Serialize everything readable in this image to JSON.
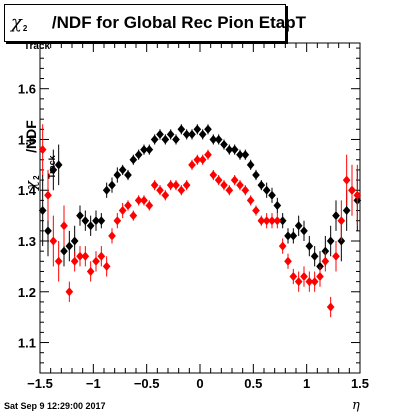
{
  "title": {
    "chi": "χ",
    "sup": "2",
    "sub": "Track",
    "rest": "/NDF for Global Rec Pion EtapT"
  },
  "ylabel": {
    "chi": "χ",
    "sup": "2",
    "sub": "Track",
    "rest": "/NDF"
  },
  "xlabel": "η",
  "datestamp": "Sat Sep  9 12:29:00 2017",
  "colors": {
    "series1": "#000000",
    "series2": "#ff0000",
    "axis": "#000000"
  },
  "chart_data": {
    "type": "scatter",
    "title": "χ2 Track /NDF for Global Rec Pion EtapT",
    "xlabel": "η",
    "ylabel": "χ2 Track /NDF",
    "xlim": [
      -1.5,
      1.5
    ],
    "ylim": [
      1.04,
      1.69
    ],
    "xticks": [
      -1.5,
      -1,
      -0.5,
      0,
      0.5,
      1,
      1.5
    ],
    "xtick_labels": [
      "−1.5",
      "−1",
      "−0.5",
      "0",
      "0.5",
      "1",
      "1.5"
    ],
    "yticks": [
      1.1,
      1.2,
      1.3,
      1.4,
      1.5,
      1.6
    ],
    "ytick_labels": [
      "1.1",
      "1.2",
      "1.3",
      "1.4",
      "1.5",
      "1.6"
    ],
    "grid": false,
    "legend": "none",
    "series": [
      {
        "color": "#000000",
        "points": [
          [
            -1.475,
            1.36,
            0.07
          ],
          [
            -1.425,
            1.32,
            0.05
          ],
          [
            -1.375,
            1.44,
            0.04
          ],
          [
            -1.325,
            1.45,
            0.04
          ],
          [
            -1.275,
            1.28,
            0.03
          ],
          [
            -1.225,
            1.29,
            0.03
          ],
          [
            -1.175,
            1.3,
            0.03
          ],
          [
            -1.125,
            1.35,
            0.02
          ],
          [
            -1.075,
            1.34,
            0.02
          ],
          [
            -1.025,
            1.33,
            0.02
          ],
          [
            -0.975,
            1.34,
            0.02
          ],
          [
            -0.925,
            1.34,
            0.015
          ],
          [
            -0.875,
            1.4,
            0.015
          ],
          [
            -0.825,
            1.41,
            0.015
          ],
          [
            -0.775,
            1.43,
            0.015
          ],
          [
            -0.725,
            1.44,
            0.01
          ],
          [
            -0.675,
            1.43,
            0.01
          ],
          [
            -0.625,
            1.46,
            0.01
          ],
          [
            -0.575,
            1.47,
            0.01
          ],
          [
            -0.525,
            1.48,
            0.01
          ],
          [
            -0.475,
            1.48,
            0.01
          ],
          [
            -0.425,
            1.5,
            0.01
          ],
          [
            -0.375,
            1.51,
            0.01
          ],
          [
            -0.325,
            1.5,
            0.01
          ],
          [
            -0.275,
            1.51,
            0.01
          ],
          [
            -0.225,
            1.5,
            0.01
          ],
          [
            -0.175,
            1.52,
            0.01
          ],
          [
            -0.125,
            1.51,
            0.01
          ],
          [
            -0.075,
            1.51,
            0.01
          ],
          [
            -0.025,
            1.52,
            0.01
          ],
          [
            0.025,
            1.51,
            0.01
          ],
          [
            0.075,
            1.52,
            0.01
          ],
          [
            0.125,
            1.5,
            0.01
          ],
          [
            0.175,
            1.5,
            0.01
          ],
          [
            0.225,
            1.49,
            0.01
          ],
          [
            0.275,
            1.48,
            0.01
          ],
          [
            0.325,
            1.48,
            0.01
          ],
          [
            0.375,
            1.47,
            0.01
          ],
          [
            0.425,
            1.47,
            0.01
          ],
          [
            0.475,
            1.45,
            0.01
          ],
          [
            0.525,
            1.43,
            0.01
          ],
          [
            0.575,
            1.41,
            0.01
          ],
          [
            0.625,
            1.4,
            0.015
          ],
          [
            0.675,
            1.39,
            0.015
          ],
          [
            0.725,
            1.37,
            0.015
          ],
          [
            0.775,
            1.34,
            0.015
          ],
          [
            0.825,
            1.31,
            0.015
          ],
          [
            0.875,
            1.31,
            0.015
          ],
          [
            0.925,
            1.33,
            0.02
          ],
          [
            0.975,
            1.32,
            0.02
          ],
          [
            1.025,
            1.29,
            0.02
          ],
          [
            1.075,
            1.27,
            0.02
          ],
          [
            1.125,
            1.25,
            0.03
          ],
          [
            1.175,
            1.28,
            0.03
          ],
          [
            1.225,
            1.3,
            0.03
          ],
          [
            1.275,
            1.35,
            0.03
          ],
          [
            1.325,
            1.3,
            0.04
          ],
          [
            1.375,
            1.36,
            0.04
          ],
          [
            1.425,
            1.4,
            0.05
          ],
          [
            1.475,
            1.38,
            0.06
          ]
        ]
      },
      {
        "color": "#ff0000",
        "points": [
          [
            -1.475,
            1.48,
            0.05
          ],
          [
            -1.425,
            1.39,
            0.05
          ],
          [
            -1.375,
            1.3,
            0.05
          ],
          [
            -1.325,
            1.26,
            0.04
          ],
          [
            -1.275,
            1.33,
            0.04
          ],
          [
            -1.225,
            1.2,
            0.02
          ],
          [
            -1.175,
            1.26,
            0.02
          ],
          [
            -1.125,
            1.27,
            0.02
          ],
          [
            -1.075,
            1.27,
            0.02
          ],
          [
            -1.025,
            1.24,
            0.02
          ],
          [
            -0.975,
            1.26,
            0.02
          ],
          [
            -0.925,
            1.27,
            0.02
          ],
          [
            -0.875,
            1.25,
            0.02
          ],
          [
            -0.825,
            1.31,
            0.015
          ],
          [
            -0.775,
            1.34,
            0.015
          ],
          [
            -0.725,
            1.36,
            0.015
          ],
          [
            -0.675,
            1.37,
            0.01
          ],
          [
            -0.625,
            1.35,
            0.01
          ],
          [
            -0.575,
            1.38,
            0.01
          ],
          [
            -0.525,
            1.38,
            0.01
          ],
          [
            -0.475,
            1.37,
            0.01
          ],
          [
            -0.425,
            1.41,
            0.01
          ],
          [
            -0.375,
            1.4,
            0.01
          ],
          [
            -0.325,
            1.39,
            0.01
          ],
          [
            -0.275,
            1.41,
            0.01
          ],
          [
            -0.225,
            1.41,
            0.01
          ],
          [
            -0.175,
            1.4,
            0.01
          ],
          [
            -0.125,
            1.41,
            0.01
          ],
          [
            -0.075,
            1.45,
            0.01
          ],
          [
            -0.025,
            1.46,
            0.01
          ],
          [
            0.025,
            1.46,
            0.01
          ],
          [
            0.075,
            1.47,
            0.01
          ],
          [
            0.125,
            1.43,
            0.01
          ],
          [
            0.175,
            1.42,
            0.01
          ],
          [
            0.225,
            1.41,
            0.01
          ],
          [
            0.275,
            1.4,
            0.01
          ],
          [
            0.325,
            1.42,
            0.01
          ],
          [
            0.375,
            1.41,
            0.01
          ],
          [
            0.425,
            1.4,
            0.01
          ],
          [
            0.475,
            1.38,
            0.01
          ],
          [
            0.525,
            1.36,
            0.01
          ],
          [
            0.575,
            1.34,
            0.01
          ],
          [
            0.625,
            1.34,
            0.015
          ],
          [
            0.675,
            1.34,
            0.015
          ],
          [
            0.725,
            1.34,
            0.015
          ],
          [
            0.775,
            1.29,
            0.015
          ],
          [
            0.825,
            1.26,
            0.015
          ],
          [
            0.875,
            1.23,
            0.015
          ],
          [
            0.925,
            1.22,
            0.02
          ],
          [
            0.975,
            1.23,
            0.02
          ],
          [
            1.025,
            1.22,
            0.02
          ],
          [
            1.075,
            1.22,
            0.02
          ],
          [
            1.125,
            1.23,
            0.02
          ],
          [
            1.175,
            1.26,
            0.02
          ],
          [
            1.225,
            1.17,
            0.02
          ],
          [
            1.275,
            1.27,
            0.03
          ],
          [
            1.325,
            1.34,
            0.04
          ],
          [
            1.375,
            1.42,
            0.05
          ],
          [
            1.425,
            1.4,
            0.05
          ],
          [
            1.475,
            1.39,
            0.06
          ]
        ]
      }
    ]
  }
}
